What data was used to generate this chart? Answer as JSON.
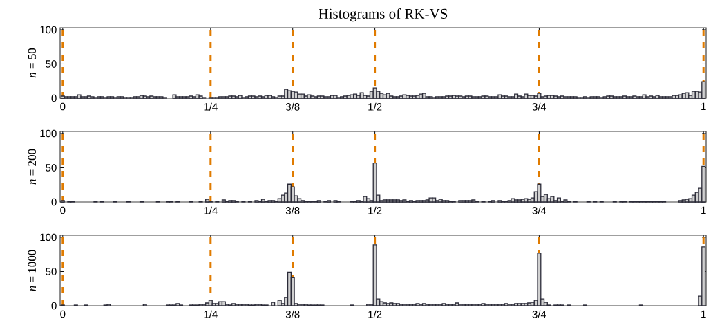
{
  "chart_data": [
    {
      "type": "histogram",
      "title": "Histograms of RK-VS",
      "ylabel": "*n* = 50",
      "color": "#d0d0d0",
      "bins": [
        0.0225,
        0.0275,
        0.0325,
        0.0375,
        0.0425,
        0.0475,
        0.0525,
        0.0575,
        0.0625,
        0.0675,
        0.0725,
        0.0775,
        0.0825,
        0.0875,
        0.0925,
        0.0975,
        0.1025,
        0.1075,
        0.1125,
        0.1175,
        0.1225,
        0.1275,
        0.1325,
        0.1375,
        0.1425,
        0.1475,
        0.1525,
        0.1575,
        0.1625,
        0.1675,
        0.1725,
        0.1775,
        0.1825,
        0.1875,
        0.1925,
        0.1975,
        0.2025,
        0.2075,
        0.2125,
        0.2175,
        0.2225,
        0.2275,
        0.2325,
        0.2375,
        0.2425,
        0.2475,
        0.2525,
        0.2575,
        0.2625,
        0.2675,
        0.2725,
        0.2775,
        0.2825,
        0.2875,
        0.2925,
        0.2975,
        0.3025,
        0.3075,
        0.3125,
        0.3175,
        0.3225,
        0.3275,
        0.3325,
        0.3375,
        0.3425,
        0.3475,
        0.3525,
        0.3575,
        0.3625,
        0.3675,
        0.3725,
        0.3775,
        0.3825,
        0.3875,
        0.3925,
        0.3975,
        0.4025,
        0.4075,
        0.4125,
        0.4175,
        0.4225,
        0.4275,
        0.4325,
        0.4375,
        0.4425,
        0.4475,
        0.4525,
        0.4575,
        0.4625,
        0.4675,
        0.4725,
        0.4775,
        0.4825,
        0.4875,
        0.4925,
        0.4975,
        0.5025,
        0.5075,
        0.5125,
        0.5175,
        0.5225,
        0.5275,
        0.5325,
        0.5375,
        0.5425,
        0.5475,
        0.5525,
        0.5575,
        0.5625,
        0.5675,
        0.5725,
        0.5775,
        0.5825,
        0.5875,
        0.5925,
        0.5975,
        0.6025,
        0.6075,
        0.6125,
        0.6175,
        0.6225,
        0.6275,
        0.6325,
        0.6375,
        0.6425,
        0.6475,
        0.6525,
        0.6575,
        0.6625,
        0.6675,
        0.6725,
        0.6775,
        0.6825,
        0.6875,
        0.6925,
        0.6975,
        0.7025,
        0.7075,
        0.7125,
        0.7175,
        0.7225,
        0.7275,
        0.7325,
        0.7375,
        0.7425,
        0.7475,
        0.7525,
        0.7575,
        0.7625,
        0.7675,
        0.7725,
        0.7775,
        0.7825,
        0.7875,
        0.7925,
        0.7975,
        0.8025,
        0.8075,
        0.8125,
        0.8175,
        0.8225,
        0.8275,
        0.8325,
        0.8375,
        0.8425,
        0.8475,
        0.8525,
        0.8575,
        0.8625,
        0.8675,
        0.8725,
        0.8775,
        0.8825,
        0.8875,
        0.8925,
        0.8975,
        0.9025,
        0.9075,
        0.9125,
        0.9175,
        0.9225,
        0.9275,
        0.9325,
        0.9375,
        0.9425,
        0.9475,
        0.9525,
        0.9575,
        0.9625,
        0.9675,
        0.9725,
        0.9775,
        0.9825,
        0.9875,
        0.9925,
        0.9975,
        1.0025
      ],
      "values": [
        3,
        2,
        2,
        2,
        2,
        5,
        2,
        2,
        3,
        2,
        1,
        2,
        2,
        1,
        2,
        2,
        1,
        2,
        2,
        1,
        1,
        1,
        2,
        2,
        4,
        3,
        2,
        3,
        2,
        2,
        2,
        1,
        0,
        0,
        5,
        2,
        2,
        2,
        2,
        3,
        2,
        5,
        3,
        1,
        0,
        1,
        1,
        1,
        2,
        2,
        2,
        3,
        3,
        2,
        4,
        1,
        2,
        3,
        3,
        2,
        3,
        2,
        4,
        4,
        2,
        1,
        3,
        3,
        13,
        11,
        10,
        9,
        6,
        6,
        3,
        5,
        3,
        2,
        3,
        3,
        2,
        2,
        4,
        4,
        1,
        2,
        3,
        4,
        5,
        6,
        4,
        8,
        4,
        3,
        10,
        15,
        10,
        7,
        5,
        7,
        3,
        2,
        2,
        3,
        5,
        4,
        3,
        3,
        4,
        6,
        7,
        2,
        2,
        1,
        2,
        2,
        2,
        3,
        3,
        4,
        3,
        3,
        2,
        3,
        3,
        2,
        2,
        2,
        3,
        3,
        2,
        2,
        2,
        5,
        3,
        3,
        2,
        2,
        6,
        3,
        2,
        6,
        4,
        4,
        3,
        7,
        2,
        3,
        4,
        4,
        3,
        2,
        3,
        2,
        2,
        2,
        2,
        1,
        1,
        2,
        1,
        2,
        2,
        2,
        1,
        2,
        3,
        3,
        2,
        2,
        2,
        3,
        2,
        2,
        3,
        2,
        2,
        5,
        2,
        3,
        2,
        4,
        2,
        2,
        2,
        2,
        4,
        4,
        5,
        7,
        8,
        4,
        10,
        10,
        9,
        24
      ],
      "xlim": [
        0.021,
        1.004
      ],
      "ylim": [
        0,
        103
      ],
      "xticks": [
        {
          "value": 0.025,
          "label": "0"
        },
        {
          "value": 0.25,
          "label": "1/4"
        },
        {
          "value": 0.375,
          "label": "3/8"
        },
        {
          "value": 0.5,
          "label": "1/2"
        },
        {
          "value": 0.75,
          "label": "3/4"
        },
        1
      ],
      "yticks": [
        0,
        50,
        100
      ],
      "ref_lines": [
        {
          "axis": "x",
          "value": 0.025,
          "color": "#e07b00",
          "line_style": "dashed"
        },
        {
          "axis": "x",
          "value": 0.25,
          "color": "#e07b00",
          "line_style": "dashed"
        },
        {
          "axis": "x",
          "value": 0.375,
          "color": "#e07b00",
          "line_style": "dashed"
        },
        {
          "axis": "x",
          "value": 0.5,
          "color": "#e07b00",
          "line_style": "dashed"
        },
        {
          "axis": "x",
          "value": 0.75,
          "color": "#e07b00",
          "line_style": "dashed"
        },
        {
          "axis": "x",
          "value": 1,
          "color": "#e07b00",
          "line_style": "dashed"
        }
      ]
    },
    {
      "type": "histogram",
      "ylabel": "*n* = 200",
      "color": "#d0d0d0",
      "bins": [
        0.0225,
        0.0275,
        0.0325,
        0.0375,
        0.0425,
        0.0475,
        0.0525,
        0.0575,
        0.0625,
        0.0675,
        0.0725,
        0.0775,
        0.0825,
        0.0875,
        0.0925,
        0.0975,
        0.1025,
        0.1075,
        0.1125,
        0.1175,
        0.1225,
        0.1275,
        0.1325,
        0.1375,
        0.1425,
        0.1475,
        0.1525,
        0.1575,
        0.1625,
        0.1675,
        0.1725,
        0.1775,
        0.1825,
        0.1875,
        0.1925,
        0.1975,
        0.2025,
        0.2075,
        0.2125,
        0.2175,
        0.2225,
        0.2275,
        0.2325,
        0.2375,
        0.2425,
        0.2475,
        0.2525,
        0.2575,
        0.2625,
        0.2675,
        0.2725,
        0.2775,
        0.2825,
        0.2875,
        0.2925,
        0.2975,
        0.3025,
        0.3075,
        0.3125,
        0.3175,
        0.3225,
        0.3275,
        0.3325,
        0.3375,
        0.3425,
        0.3475,
        0.3525,
        0.3575,
        0.3625,
        0.3675,
        0.3725,
        0.3775,
        0.3825,
        0.3875,
        0.3925,
        0.3975,
        0.4025,
        0.4075,
        0.4125,
        0.4175,
        0.4225,
        0.4275,
        0.4325,
        0.4375,
        0.4425,
        0.4475,
        0.4525,
        0.4575,
        0.4625,
        0.4675,
        0.4725,
        0.4775,
        0.4825,
        0.4875,
        0.4925,
        0.4975,
        0.5025,
        0.5075,
        0.5125,
        0.5175,
        0.5225,
        0.5275,
        0.5325,
        0.5375,
        0.5425,
        0.5475,
        0.5525,
        0.5575,
        0.5625,
        0.5675,
        0.5725,
        0.5775,
        0.5825,
        0.5875,
        0.5925,
        0.5975,
        0.6025,
        0.6075,
        0.6125,
        0.6175,
        0.6225,
        0.6275,
        0.6325,
        0.6375,
        0.6425,
        0.6475,
        0.6525,
        0.6575,
        0.6625,
        0.6675,
        0.6725,
        0.6775,
        0.6825,
        0.6875,
        0.6925,
        0.6975,
        0.7025,
        0.7075,
        0.7125,
        0.7175,
        0.7225,
        0.7275,
        0.7325,
        0.7375,
        0.7425,
        0.7475,
        0.7525,
        0.7575,
        0.7625,
        0.7675,
        0.7725,
        0.7775,
        0.7825,
        0.7875,
        0.7925,
        0.7975,
        0.8025,
        0.8075,
        0.8125,
        0.8175,
        0.8225,
        0.8275,
        0.8325,
        0.8375,
        0.8425,
        0.8475,
        0.8525,
        0.8575,
        0.8625,
        0.8675,
        0.8725,
        0.8775,
        0.8825,
        0.8875,
        0.8925,
        0.8975,
        0.9025,
        0.9075,
        0.9125,
        0.9175,
        0.9225,
        0.9275,
        0.9325,
        0.9375,
        0.9425,
        0.9475,
        0.9525,
        0.9575,
        0.9625,
        0.9675,
        0.9725,
        0.9775,
        0.9825,
        0.9875,
        0.9925,
        0.9975,
        1.0025
      ],
      "values": [
        2,
        0,
        1,
        1,
        0,
        0,
        0,
        0,
        0,
        0,
        1,
        0,
        1,
        0,
        0,
        0,
        1,
        0,
        0,
        0,
        1,
        0,
        0,
        0,
        1,
        0,
        0,
        0,
        0,
        1,
        0,
        0,
        1,
        1,
        0,
        1,
        0,
        0,
        0,
        1,
        0,
        0,
        1,
        0,
        4,
        1,
        0,
        1,
        0,
        3,
        1,
        2,
        2,
        1,
        0,
        1,
        0,
        1,
        0,
        2,
        1,
        4,
        1,
        2,
        2,
        1,
        5,
        10,
        13,
        26,
        22,
        9,
        5,
        2,
        1,
        1,
        1,
        1,
        2,
        0,
        1,
        2,
        0,
        2,
        1,
        0,
        0,
        0,
        1,
        1,
        2,
        1,
        8,
        5,
        2,
        57,
        10,
        2,
        3,
        3,
        3,
        3,
        3,
        2,
        3,
        1,
        2,
        1,
        2,
        2,
        2,
        3,
        6,
        6,
        2,
        4,
        2,
        2,
        1,
        1,
        0,
        2,
        2,
        2,
        2,
        3,
        1,
        0,
        1,
        0,
        1,
        2,
        0,
        2,
        1,
        1,
        2,
        5,
        3,
        3,
        4,
        5,
        4,
        6,
        15,
        26,
        8,
        11,
        5,
        8,
        2,
        6,
        1,
        3,
        1,
        0,
        1,
        0,
        0,
        0,
        1,
        0,
        1,
        0,
        1,
        0,
        0,
        0,
        1,
        0,
        1,
        1,
        0,
        1,
        1,
        1,
        1,
        1,
        1,
        1,
        1,
        1,
        1,
        1,
        0,
        0,
        0,
        0,
        2,
        3,
        4,
        5,
        10,
        14,
        20,
        52
      ],
      "xlim": [
        0.021,
        1.004
      ],
      "ylim": [
        0,
        103
      ],
      "xticks": [
        {
          "value": 0.025,
          "label": "0"
        },
        {
          "value": 0.25,
          "label": "1/4"
        },
        {
          "value": 0.375,
          "label": "3/8"
        },
        {
          "value": 0.5,
          "label": "1/2"
        },
        {
          "value": 0.75,
          "label": "3/4"
        },
        1
      ],
      "yticks": [
        0,
        50,
        100
      ],
      "ref_lines": [
        {
          "axis": "x",
          "value": 0.025,
          "color": "#e07b00",
          "line_style": "dashed"
        },
        {
          "axis": "x",
          "value": 0.25,
          "color": "#e07b00",
          "line_style": "dashed"
        },
        {
          "axis": "x",
          "value": 0.375,
          "color": "#e07b00",
          "line_style": "dashed"
        },
        {
          "axis": "x",
          "value": 0.5,
          "color": "#e07b00",
          "line_style": "dashed"
        },
        {
          "axis": "x",
          "value": 0.75,
          "color": "#e07b00",
          "line_style": "dashed"
        },
        {
          "axis": "x",
          "value": 1,
          "color": "#e07b00",
          "line_style": "dashed"
        }
      ]
    },
    {
      "type": "histogram",
      "ylabel": "*n* = 1000",
      "color": "#d0d0d0",
      "bins": [
        0.0225,
        0.0275,
        0.0325,
        0.0375,
        0.0425,
        0.0475,
        0.0525,
        0.0575,
        0.0625,
        0.0675,
        0.0725,
        0.0775,
        0.0825,
        0.0875,
        0.0925,
        0.0975,
        0.1025,
        0.1075,
        0.1125,
        0.1175,
        0.1225,
        0.1275,
        0.1325,
        0.1375,
        0.1425,
        0.1475,
        0.1525,
        0.1575,
        0.1625,
        0.1675,
        0.1725,
        0.1775,
        0.1825,
        0.1875,
        0.1925,
        0.1975,
        0.2025,
        0.2075,
        0.2125,
        0.2175,
        0.2225,
        0.2275,
        0.2325,
        0.2375,
        0.2425,
        0.2475,
        0.2525,
        0.2575,
        0.2625,
        0.2675,
        0.2725,
        0.2775,
        0.2825,
        0.2875,
        0.2925,
        0.2975,
        0.3025,
        0.3075,
        0.3125,
        0.3175,
        0.3225,
        0.3275,
        0.3325,
        0.3375,
        0.3425,
        0.3475,
        0.3525,
        0.3575,
        0.3625,
        0.3675,
        0.3725,
        0.3775,
        0.3825,
        0.3875,
        0.3925,
        0.3975,
        0.4025,
        0.4075,
        0.4125,
        0.4175,
        0.4225,
        0.4275,
        0.4325,
        0.4375,
        0.4425,
        0.4475,
        0.4525,
        0.4575,
        0.4625,
        0.4675,
        0.4725,
        0.4775,
        0.4825,
        0.4875,
        0.4925,
        0.4975,
        0.5025,
        0.5075,
        0.5125,
        0.5175,
        0.5225,
        0.5275,
        0.5325,
        0.5375,
        0.5425,
        0.5475,
        0.5525,
        0.5575,
        0.5625,
        0.5675,
        0.5725,
        0.5775,
        0.5825,
        0.5875,
        0.5925,
        0.5975,
        0.6025,
        0.6075,
        0.6125,
        0.6175,
        0.6225,
        0.6275,
        0.6325,
        0.6375,
        0.6425,
        0.6475,
        0.6525,
        0.6575,
        0.6625,
        0.6675,
        0.6725,
        0.6775,
        0.6825,
        0.6875,
        0.6925,
        0.6975,
        0.7025,
        0.7075,
        0.7125,
        0.7175,
        0.7225,
        0.7275,
        0.7325,
        0.7375,
        0.7425,
        0.7475,
        0.7525,
        0.7575,
        0.7625,
        0.7675,
        0.7725,
        0.7775,
        0.7825,
        0.7875,
        0.7925,
        0.7975,
        0.8025,
        0.8075,
        0.8125,
        0.8175,
        0.8225,
        0.8275,
        0.8325,
        0.8375,
        0.8425,
        0.8475,
        0.8525,
        0.8575,
        0.8625,
        0.8675,
        0.8725,
        0.8775,
        0.8825,
        0.8875,
        0.8925,
        0.8975,
        0.9025,
        0.9075,
        0.9125,
        0.9175,
        0.9225,
        0.9275,
        0.9325,
        0.9375,
        0.9425,
        0.9475,
        0.9525,
        0.9575,
        0.9625,
        0.9675,
        0.9725,
        0.9775,
        0.9825,
        0.9875,
        0.9925,
        0.9975,
        1.0025
      ],
      "values": [
        1,
        0,
        0,
        0,
        1,
        0,
        0,
        1,
        0,
        0,
        0,
        0,
        0,
        1,
        2,
        0,
        0,
        0,
        0,
        0,
        0,
        0,
        0,
        0,
        0,
        2,
        0,
        0,
        0,
        0,
        0,
        0,
        1,
        1,
        1,
        3,
        1,
        0,
        0,
        1,
        1,
        1,
        2,
        2,
        4,
        8,
        3,
        3,
        6,
        6,
        2,
        1,
        3,
        2,
        2,
        2,
        2,
        1,
        1,
        2,
        2,
        1,
        1,
        0,
        5,
        0,
        8,
        3,
        12,
        49,
        41,
        3,
        2,
        2,
        2,
        1,
        1,
        1,
        1,
        1,
        0,
        0,
        0,
        0,
        0,
        0,
        0,
        0,
        1,
        0,
        0,
        0,
        0,
        2,
        2,
        89,
        10,
        6,
        4,
        3,
        4,
        3,
        3,
        2,
        2,
        2,
        2,
        2,
        3,
        2,
        3,
        2,
        2,
        2,
        2,
        2,
        3,
        2,
        2,
        2,
        4,
        2,
        2,
        2,
        2,
        2,
        2,
        2,
        3,
        2,
        2,
        2,
        2,
        2,
        2,
        3,
        2,
        2,
        3,
        3,
        3,
        3,
        4,
        5,
        8,
        77,
        10,
        5,
        1,
        0,
        1,
        1,
        1,
        0,
        1,
        0,
        0,
        0,
        0,
        1,
        0,
        0,
        0,
        0,
        0,
        0,
        0,
        0,
        0,
        0,
        0,
        0,
        0,
        0,
        0,
        0,
        1,
        0,
        0,
        0,
        0,
        0,
        0,
        0,
        0,
        0,
        0,
        0,
        0,
        0,
        0,
        0,
        0,
        0,
        14,
        86
      ],
      "xlim": [
        0.021,
        1.004
      ],
      "ylim": [
        0,
        103
      ],
      "xticks": [
        {
          "value": 0.025,
          "label": "0"
        },
        {
          "value": 0.25,
          "label": "1/4"
        },
        {
          "value": 0.375,
          "label": "3/8"
        },
        {
          "value": 0.5,
          "label": "1/2"
        },
        {
          "value": 0.75,
          "label": "3/4"
        },
        1
      ],
      "yticks": [
        0,
        50,
        100
      ],
      "ref_lines": [
        {
          "axis": "x",
          "value": 0.025,
          "color": "#e07b00",
          "line_style": "dashed"
        },
        {
          "axis": "x",
          "value": 0.25,
          "color": "#e07b00",
          "line_style": "dashed"
        },
        {
          "axis": "x",
          "value": 0.375,
          "color": "#e07b00",
          "line_style": "dashed"
        },
        {
          "axis": "x",
          "value": 0.5,
          "color": "#e07b00",
          "line_style": "dashed"
        },
        {
          "axis": "x",
          "value": 0.75,
          "color": "#e07b00",
          "line_style": "dashed"
        },
        {
          "axis": "x",
          "value": 1,
          "color": "#e07b00",
          "line_style": "dashed"
        }
      ]
    }
  ]
}
